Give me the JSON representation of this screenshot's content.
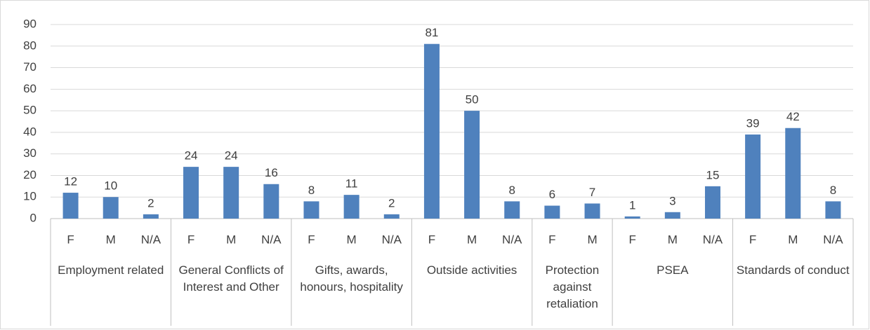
{
  "chart_data": {
    "type": "bar",
    "color": "#4f81bd",
    "grid": true,
    "ylim": [
      0,
      90
    ],
    "yticks": [
      0,
      10,
      20,
      30,
      40,
      50,
      60,
      70,
      80,
      90
    ],
    "groups": [
      {
        "name": "Employment related",
        "categories": [
          "F",
          "M",
          "N/A"
        ],
        "values": [
          12,
          10,
          2
        ]
      },
      {
        "name": "General Conflicts of Interest and Other",
        "categories": [
          "F",
          "M",
          "N/A"
        ],
        "values": [
          24,
          24,
          16
        ]
      },
      {
        "name": "Gifts, awards, honours, hospitality",
        "categories": [
          "F",
          "M",
          "N/A"
        ],
        "values": [
          8,
          11,
          2
        ]
      },
      {
        "name": "Outside activities",
        "categories": [
          "F",
          "M",
          "N/A"
        ],
        "values": [
          81,
          50,
          8
        ]
      },
      {
        "name": "Protection against retaliation",
        "categories": [
          "F",
          "M"
        ],
        "values": [
          6,
          7
        ]
      },
      {
        "name": "PSEA",
        "categories": [
          "F",
          "M",
          "N/A"
        ],
        "values": [
          1,
          3,
          15
        ]
      },
      {
        "name": "Standards of conduct",
        "categories": [
          "F",
          "M",
          "N/A"
        ],
        "values": [
          39,
          42,
          8
        ]
      }
    ]
  }
}
